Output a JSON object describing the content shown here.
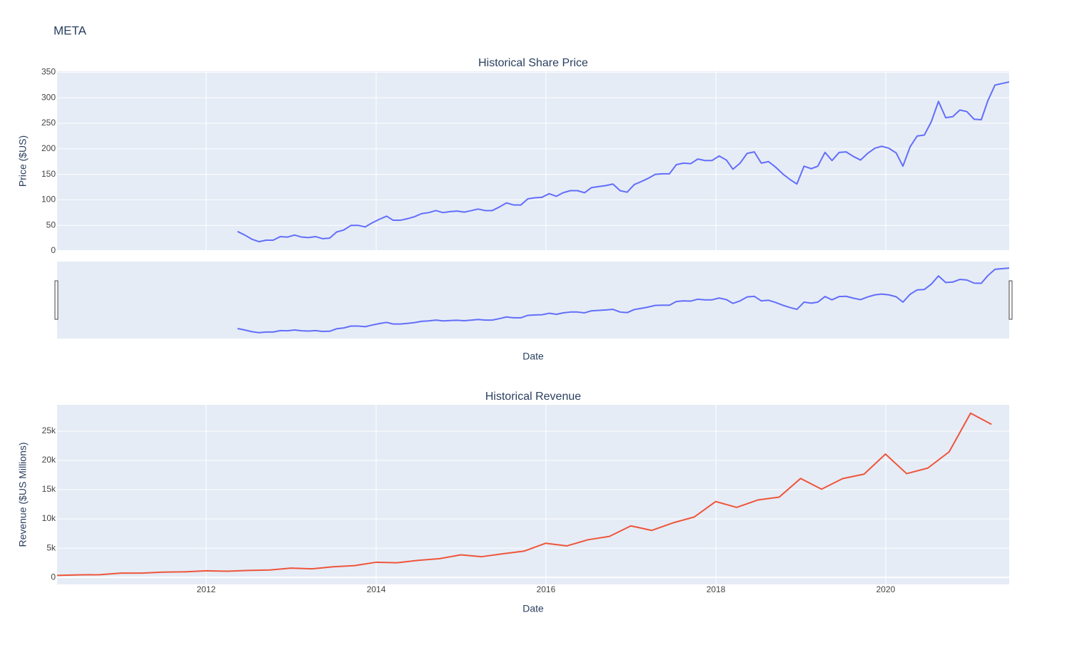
{
  "title": "META",
  "chart_data": [
    {
      "type": "line",
      "title": "Historical Share Price",
      "y_label": "Price ($US)",
      "x_label": "Date",
      "color": "#636efa",
      "grid": true,
      "range_slider": true,
      "xlim": [
        "2010-03-31",
        "2021-06-15"
      ],
      "ylim": [
        0,
        352
      ],
      "yticks": [
        0,
        50,
        100,
        150,
        200,
        250,
        300,
        350
      ],
      "x": [
        "2012-05-15",
        "2012-06-15",
        "2012-07-15",
        "2012-08-15",
        "2012-09-15",
        "2012-10-15",
        "2012-11-15",
        "2012-12-15",
        "2013-01-15",
        "2013-02-15",
        "2013-03-15",
        "2013-04-15",
        "2013-05-15",
        "2013-06-15",
        "2013-07-15",
        "2013-08-15",
        "2013-09-15",
        "2013-10-15",
        "2013-11-15",
        "2013-12-15",
        "2014-01-15",
        "2014-02-15",
        "2014-03-15",
        "2014-04-15",
        "2014-05-15",
        "2014-06-15",
        "2014-07-15",
        "2014-08-15",
        "2014-09-15",
        "2014-10-15",
        "2014-11-15",
        "2014-12-15",
        "2015-01-15",
        "2015-02-15",
        "2015-03-15",
        "2015-04-15",
        "2015-05-15",
        "2015-06-15",
        "2015-07-15",
        "2015-08-15",
        "2015-09-15",
        "2015-10-15",
        "2015-11-15",
        "2015-12-15",
        "2016-01-15",
        "2016-02-15",
        "2016-03-15",
        "2016-04-15",
        "2016-05-15",
        "2016-06-15",
        "2016-07-15",
        "2016-08-15",
        "2016-09-15",
        "2016-10-15",
        "2016-11-15",
        "2016-12-15",
        "2017-01-15",
        "2017-02-15",
        "2017-03-15",
        "2017-04-15",
        "2017-05-15",
        "2017-06-15",
        "2017-07-15",
        "2017-08-15",
        "2017-09-15",
        "2017-10-15",
        "2017-11-15",
        "2017-12-15",
        "2018-01-15",
        "2018-02-15",
        "2018-03-15",
        "2018-04-15",
        "2018-05-15",
        "2018-06-15",
        "2018-07-15",
        "2018-08-15",
        "2018-09-15",
        "2018-10-15",
        "2018-11-15",
        "2018-12-15",
        "2019-01-15",
        "2019-02-15",
        "2019-03-15",
        "2019-04-15",
        "2019-05-15",
        "2019-06-15",
        "2019-07-15",
        "2019-08-15",
        "2019-09-15",
        "2019-10-15",
        "2019-11-15",
        "2019-12-15",
        "2020-01-15",
        "2020-02-15",
        "2020-03-15",
        "2020-04-15",
        "2020-05-15",
        "2020-06-15",
        "2020-07-15",
        "2020-08-15",
        "2020-09-15",
        "2020-10-15",
        "2020-11-15",
        "2020-12-15",
        "2021-01-15",
        "2021-02-15",
        "2021-03-15",
        "2021-04-15",
        "2021-05-15",
        "2021-06-15"
      ],
      "values": [
        38,
        31,
        23,
        18,
        21,
        21,
        28,
        27,
        31,
        27,
        26,
        28,
        24,
        25,
        37,
        41,
        50,
        50,
        47,
        55,
        62,
        68,
        60,
        60,
        63,
        67,
        73,
        75,
        79,
        75,
        77,
        78,
        76,
        79,
        82,
        79,
        79,
        86,
        94,
        90,
        90,
        102,
        104,
        105,
        112,
        107,
        114,
        118,
        118,
        114,
        124,
        126,
        128,
        131,
        118,
        115,
        130,
        136,
        142,
        150,
        151,
        151,
        169,
        172,
        171,
        180,
        177,
        177,
        186,
        178,
        160,
        172,
        191,
        194,
        172,
        175,
        164,
        151,
        140,
        131,
        166,
        161,
        166,
        193,
        177,
        193,
        194,
        185,
        178,
        191,
        201,
        205,
        201,
        192,
        166,
        204,
        225,
        227,
        253,
        293,
        261,
        263,
        276,
        273,
        258,
        257,
        294,
        325,
        328,
        331
      ]
    },
    {
      "type": "line",
      "title": "Historical Revenue",
      "y_label": "Revenue ($US Millions)",
      "x_label": "Date",
      "color": "#ef553b",
      "grid": true,
      "xlim": [
        "2010-03-31",
        "2021-06-15"
      ],
      "ylim": [
        -1200,
        29500
      ],
      "xticks": [
        {
          "value": "2012-01-01",
          "label": "2012"
        },
        {
          "value": "2014-01-01",
          "label": "2014"
        },
        {
          "value": "2016-01-01",
          "label": "2016"
        },
        {
          "value": "2018-01-01",
          "label": "2018"
        },
        {
          "value": "2020-01-01",
          "label": "2020"
        }
      ],
      "yticks": [
        0,
        {
          "value": 5000,
          "label": "5k"
        },
        {
          "value": 10000,
          "label": "10k"
        },
        {
          "value": 15000,
          "label": "15k"
        },
        {
          "value": 20000,
          "label": "20k"
        },
        {
          "value": 25000,
          "label": "25k"
        }
      ],
      "x": [
        "2010-03-31",
        "2010-06-30",
        "2010-09-30",
        "2010-12-31",
        "2011-03-31",
        "2011-06-30",
        "2011-09-30",
        "2011-12-31",
        "2012-03-31",
        "2012-06-30",
        "2012-09-30",
        "2012-12-31",
        "2013-03-31",
        "2013-06-30",
        "2013-09-30",
        "2013-12-31",
        "2014-03-31",
        "2014-06-30",
        "2014-09-30",
        "2014-12-31",
        "2015-03-31",
        "2015-06-30",
        "2015-09-30",
        "2015-12-31",
        "2016-03-31",
        "2016-06-30",
        "2016-09-30",
        "2016-12-31",
        "2017-03-31",
        "2017-06-30",
        "2017-09-30",
        "2017-12-31",
        "2018-03-31",
        "2018-06-30",
        "2018-09-30",
        "2018-12-31",
        "2019-03-31",
        "2019-06-30",
        "2019-09-30",
        "2019-12-31",
        "2020-03-31",
        "2020-06-30",
        "2020-09-30",
        "2020-12-31",
        "2021-03-31"
      ],
      "values": [
        345,
        431,
        467,
        731,
        731,
        895,
        954,
        1131,
        1058,
        1184,
        1262,
        1585,
        1458,
        1813,
        2016,
        2585,
        2502,
        2910,
        3203,
        3851,
        3543,
        4042,
        4501,
        5841,
        5382,
        6436,
        7011,
        8809,
        8032,
        9321,
        10328,
        12972,
        11966,
        13231,
        13727,
        16914,
        15077,
        16886,
        17652,
        21082,
        17737,
        18687,
        21470,
        28072,
        26171
      ]
    }
  ]
}
